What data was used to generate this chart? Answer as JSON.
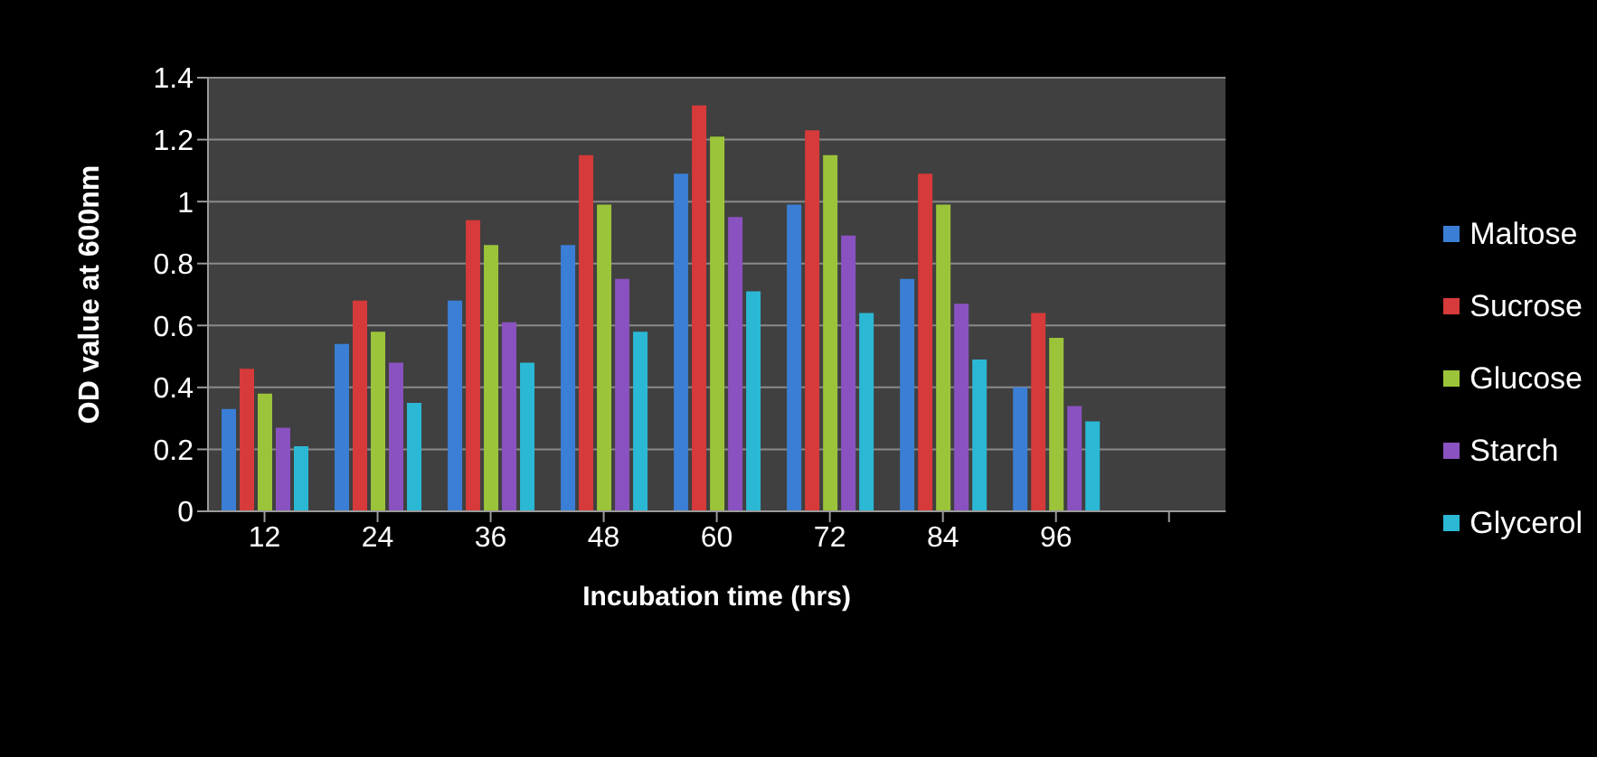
{
  "chart_data": {
    "type": "bar",
    "xlabel": "Incubation time (hrs)",
    "ylabel": "OD value at 600nm",
    "categories": [
      "12",
      "24",
      "36",
      "48",
      "60",
      "72",
      "84",
      "96",
      null
    ],
    "series": [
      {
        "name": "Maltose",
        "color": "#3a7fd5",
        "values": [
          0.33,
          0.54,
          0.68,
          0.86,
          1.09,
          0.99,
          0.75,
          0.4,
          null
        ]
      },
      {
        "name": "Sucrose",
        "color": "#d63a3a",
        "values": [
          0.46,
          0.68,
          0.94,
          1.15,
          1.31,
          1.23,
          1.09,
          0.64,
          null
        ]
      },
      {
        "name": "Glucose",
        "color": "#9cc43a",
        "values": [
          0.38,
          0.58,
          0.86,
          0.99,
          1.21,
          1.15,
          0.99,
          0.56,
          null
        ]
      },
      {
        "name": "Starch",
        "color": "#8a52c0",
        "values": [
          0.27,
          0.48,
          0.61,
          0.75,
          0.95,
          0.89,
          0.67,
          0.34,
          null
        ]
      },
      {
        "name": "Glycerol",
        "color": "#2bb8d5",
        "values": [
          0.21,
          0.35,
          0.48,
          0.58,
          0.71,
          0.64,
          0.49,
          0.29,
          null
        ]
      }
    ],
    "ylim": [
      0,
      1.4
    ],
    "yticks": [
      0,
      0.2,
      0.4,
      0.6,
      0.8,
      1,
      1.2,
      1.4
    ],
    "grid": "y",
    "legend": "right"
  }
}
